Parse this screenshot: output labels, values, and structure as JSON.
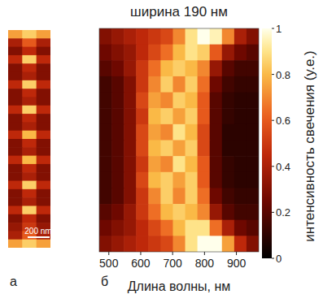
{
  "chart_data": [
    {
      "type": "heatmap",
      "panel_label": "а",
      "scale_bar": "200 nm",
      "tick_labels": false,
      "cells": [
        [
          0.75,
          0.85,
          0.75
        ],
        [
          0.4,
          0.6,
          0.4
        ],
        [
          0.3,
          0.45,
          0.3
        ],
        [
          0.45,
          0.85,
          0.45
        ],
        [
          0.3,
          0.45,
          0.3
        ],
        [
          0.3,
          0.4,
          0.3
        ],
        [
          0.45,
          0.85,
          0.45
        ],
        [
          0.3,
          0.45,
          0.3
        ],
        [
          0.3,
          0.4,
          0.3
        ],
        [
          0.45,
          0.85,
          0.45
        ],
        [
          0.3,
          0.45,
          0.3
        ],
        [
          0.3,
          0.4,
          0.3
        ],
        [
          0.45,
          0.8,
          0.45
        ],
        [
          0.3,
          0.45,
          0.3
        ],
        [
          0.3,
          0.4,
          0.3
        ],
        [
          0.45,
          0.8,
          0.45
        ],
        [
          0.3,
          0.45,
          0.3
        ],
        [
          0.3,
          0.4,
          0.3
        ],
        [
          0.45,
          0.85,
          0.45
        ],
        [
          0.3,
          0.45,
          0.3
        ],
        [
          0.3,
          0.4,
          0.3
        ],
        [
          0.45,
          0.85,
          0.45
        ],
        [
          0.3,
          0.45,
          0.3
        ],
        [
          0.35,
          0.5,
          0.35
        ],
        [
          0.4,
          0.6,
          0.4
        ],
        [
          0.75,
          0.85,
          0.75
        ]
      ]
    },
    {
      "type": "heatmap",
      "title": "ширина 190 нм",
      "panel_label": "б",
      "x_label": "Длина волны, нм",
      "xlim": [
        470,
        970
      ],
      "xticks": [
        500,
        600,
        700,
        800,
        900
      ],
      "tick_labels": "x",
      "cells": [
        [
          0.3,
          0.35,
          0.4,
          0.45,
          0.5,
          0.55,
          0.7,
          0.9,
          1.0,
          0.95,
          0.7,
          0.4,
          0.3
        ],
        [
          0.25,
          0.3,
          0.35,
          0.45,
          0.55,
          0.65,
          0.8,
          0.9,
          0.85,
          0.6,
          0.35,
          0.25,
          0.2
        ],
        [
          0.2,
          0.25,
          0.35,
          0.5,
          0.65,
          0.8,
          0.85,
          0.8,
          0.7,
          0.35,
          0.2,
          0.15,
          0.15
        ],
        [
          0.15,
          0.2,
          0.3,
          0.5,
          0.7,
          0.85,
          0.7,
          0.85,
          0.65,
          0.25,
          0.15,
          0.12,
          0.12
        ],
        [
          0.15,
          0.2,
          0.3,
          0.55,
          0.75,
          0.7,
          0.85,
          0.8,
          0.6,
          0.2,
          0.12,
          0.1,
          0.1
        ],
        [
          0.15,
          0.2,
          0.3,
          0.5,
          0.8,
          0.85,
          0.75,
          0.85,
          0.6,
          0.2,
          0.12,
          0.1,
          0.1
        ],
        [
          0.15,
          0.2,
          0.3,
          0.55,
          0.75,
          0.7,
          0.9,
          0.8,
          0.55,
          0.2,
          0.1,
          0.1,
          0.1
        ],
        [
          0.15,
          0.2,
          0.3,
          0.55,
          0.8,
          0.85,
          0.75,
          0.85,
          0.55,
          0.2,
          0.1,
          0.1,
          0.1
        ],
        [
          0.15,
          0.2,
          0.3,
          0.5,
          0.75,
          0.7,
          0.9,
          0.8,
          0.6,
          0.2,
          0.12,
          0.1,
          0.1
        ],
        [
          0.15,
          0.2,
          0.3,
          0.55,
          0.8,
          0.85,
          0.75,
          0.85,
          0.6,
          0.2,
          0.12,
          0.1,
          0.1
        ],
        [
          0.15,
          0.2,
          0.3,
          0.5,
          0.7,
          0.85,
          0.7,
          0.85,
          0.65,
          0.25,
          0.15,
          0.12,
          0.12
        ],
        [
          0.2,
          0.25,
          0.35,
          0.5,
          0.65,
          0.8,
          0.85,
          0.8,
          0.7,
          0.35,
          0.2,
          0.15,
          0.15
        ],
        [
          0.25,
          0.3,
          0.35,
          0.45,
          0.55,
          0.65,
          0.8,
          0.9,
          0.9,
          0.65,
          0.4,
          0.25,
          0.2
        ],
        [
          0.3,
          0.35,
          0.4,
          0.45,
          0.5,
          0.55,
          0.7,
          0.9,
          1.0,
          1.0,
          0.75,
          0.45,
          0.3
        ]
      ],
      "colorbar": {
        "label": "интенсивность свечения (у.е.)",
        "range": [
          0,
          1
        ],
        "ticks": [
          0,
          0.2,
          0.4,
          0.6,
          0.8,
          1
        ]
      }
    }
  ]
}
